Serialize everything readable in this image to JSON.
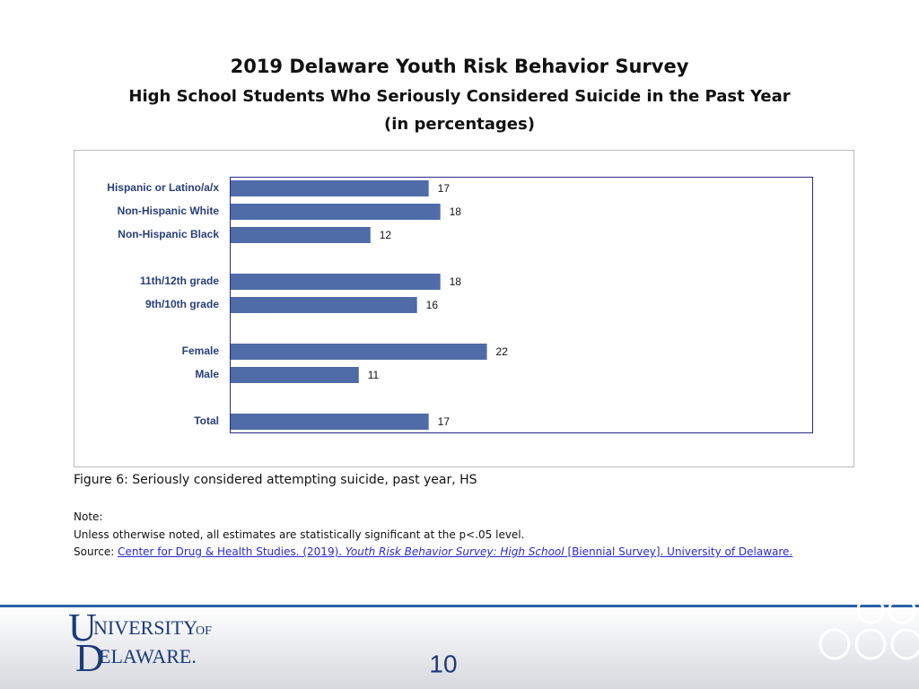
{
  "chart_data": {
    "type": "hbar",
    "title": "2019 Delaware Youth Risk Behavior Survey",
    "subtitle": "High School Students Who Seriously Considered Suicide in the Past Year",
    "subtitle2": "(in percentages)",
    "categories": [
      "Hispanic or Latino/a/x",
      "Non-Hispanic White",
      "Non-Hispanic Black",
      null,
      "11th/12th grade",
      "9th/10th grade",
      null,
      "Female",
      "Male",
      null,
      "Total"
    ],
    "values": [
      17,
      18,
      12,
      null,
      18,
      16,
      null,
      22,
      11,
      null,
      17
    ],
    "color": "#4f6ca8",
    "xlim": [
      0,
      50
    ],
    "caption": "Figure 6: Seriously considered attempting suicide, past year, HS"
  },
  "note": {
    "heading": "Note:",
    "text": "Unless otherwise noted, all estimates are statistically significant at the p<.05 level."
  },
  "source": {
    "label": "Source:",
    "link1": "Center for Drug & Health Studies. (2019).",
    "link2": "Youth Risk Behavior Survey: High School",
    "link3": "[Biennial Survey]. University of Delaware."
  },
  "footer": {
    "logo": [
      "U",
      "NIVERSITY",
      "OF",
      "D",
      "ELAWARE."
    ],
    "page": "10"
  }
}
